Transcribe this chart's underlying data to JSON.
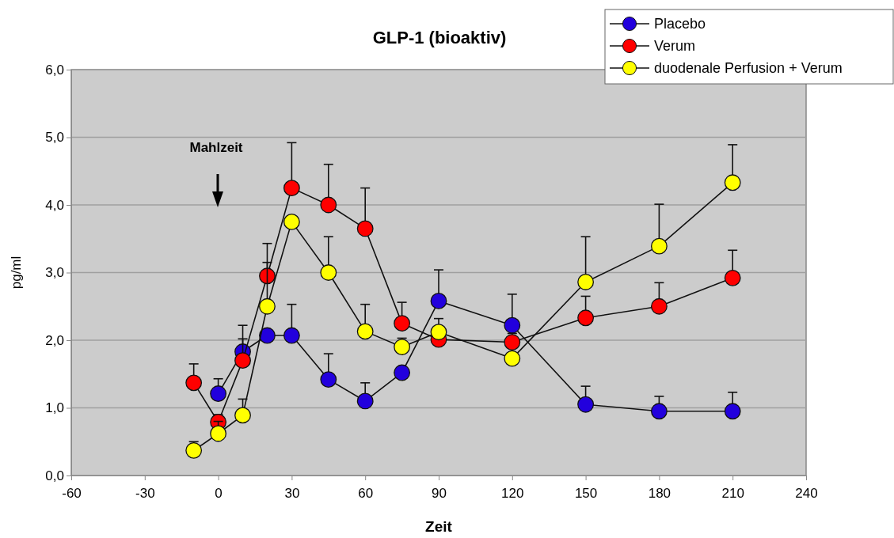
{
  "chart_data": {
    "type": "line",
    "title": "GLP-1 (bioaktiv)",
    "xlabel": "Zeit",
    "ylabel": "pg/ml",
    "x": [
      -10,
      0,
      10,
      20,
      30,
      45,
      60,
      75,
      90,
      120,
      150,
      180,
      210
    ],
    "xlim": [
      -60,
      240
    ],
    "xticks": [
      -60,
      -30,
      0,
      30,
      60,
      90,
      120,
      150,
      180,
      210,
      240
    ],
    "ylim": [
      0,
      6
    ],
    "yticks": [
      {
        "value": 0,
        "label": "0,0"
      },
      {
        "value": 1,
        "label": "1,0"
      },
      {
        "value": 2,
        "label": "2,0"
      },
      {
        "value": 3,
        "label": "3,0"
      },
      {
        "value": 4,
        "label": "4,0"
      },
      {
        "value": 5,
        "label": "5,0"
      },
      {
        "value": 6,
        "label": "6,0"
      }
    ],
    "grid": "y",
    "legend": "top right",
    "marker": "circle",
    "line_style": "solid",
    "annotations": [
      "Mahlzeit"
    ],
    "series": [
      {
        "name": "Placebo",
        "color": "#2200dd",
        "values": [
          null,
          1.21,
          1.83,
          2.07,
          2.07,
          1.42,
          1.1,
          1.52,
          2.58,
          2.22,
          1.05,
          0.95,
          0.95
        ],
        "errors": [
          null,
          [
            1.21,
            1.43
          ],
          [
            1.83,
            2.22
          ],
          null,
          [
            2.07,
            2.53
          ],
          [
            1.42,
            1.8
          ],
          [
            1.1,
            1.37
          ],
          null,
          [
            2.58,
            3.04
          ],
          [
            2.22,
            2.68
          ],
          [
            1.05,
            1.32
          ],
          [
            0.95,
            1.17
          ],
          [
            0.95,
            1.23
          ]
        ]
      },
      {
        "name": "Verum",
        "color": "#ff0000",
        "values": [
          1.37,
          0.79,
          1.7,
          2.95,
          4.25,
          4.0,
          3.65,
          2.25,
          2.01,
          1.97,
          2.33,
          2.5,
          2.92
        ],
        "errors": [
          [
            1.37,
            1.65
          ],
          [
            0.79,
            0.9
          ],
          [
            1.7,
            2.02
          ],
          [
            2.95,
            3.43
          ],
          [
            4.25,
            4.92
          ],
          [
            4.0,
            4.6
          ],
          [
            3.65,
            4.25
          ],
          [
            2.25,
            2.56
          ],
          null,
          [
            1.97,
            2.1
          ],
          [
            2.33,
            2.65
          ],
          [
            2.5,
            2.85
          ],
          [
            2.92,
            3.33
          ]
        ]
      },
      {
        "name": "duodenale Perfusion + Verum",
        "color": "#ffff00",
        "values": [
          0.37,
          0.62,
          0.89,
          2.5,
          3.75,
          3.0,
          2.13,
          1.9,
          2.12,
          1.73,
          2.86,
          3.39,
          4.33
        ],
        "errors": [
          [
            0.37,
            0.5
          ],
          [
            0.62,
            0.8
          ],
          [
            0.89,
            1.13
          ],
          [
            2.5,
            3.15
          ],
          null,
          [
            3.0,
            3.53
          ],
          [
            2.13,
            2.53
          ],
          [
            1.9,
            2.03
          ],
          [
            2.12,
            2.32
          ],
          null,
          [
            2.86,
            3.53
          ],
          [
            3.39,
            4.01
          ],
          [
            4.33,
            4.89
          ]
        ]
      }
    ]
  }
}
